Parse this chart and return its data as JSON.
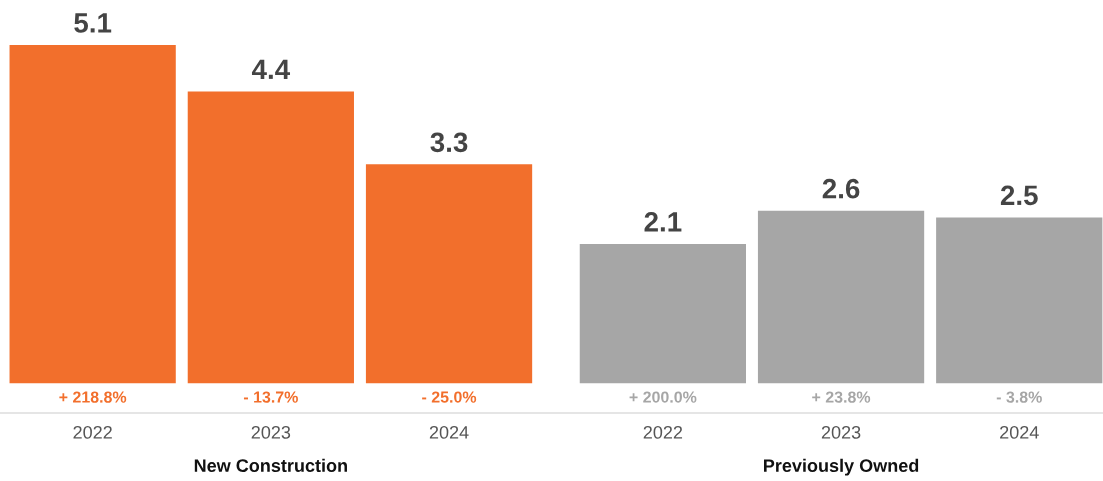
{
  "chart_data": {
    "type": "bar",
    "categories": [
      "2022",
      "2023",
      "2024",
      "2022",
      "2023",
      "2024"
    ],
    "values": [
      5.1,
      4.4,
      3.3,
      2.1,
      2.6,
      2.5
    ],
    "colors": [
      "#f26f2c",
      "#f26f2c",
      "#f26f2c",
      "#a6a6a6",
      "#a6a6a6",
      "#a6a6a6"
    ],
    "data_labels": true,
    "annotations": [
      "+ 218.8%",
      "- 13.7%",
      "- 25.0%",
      "+ 200.0%",
      "+ 23.8%",
      "- 3.8%",
      "New Construction",
      "Previously Owned"
    ],
    "grid": false,
    "legend": false
  }
}
